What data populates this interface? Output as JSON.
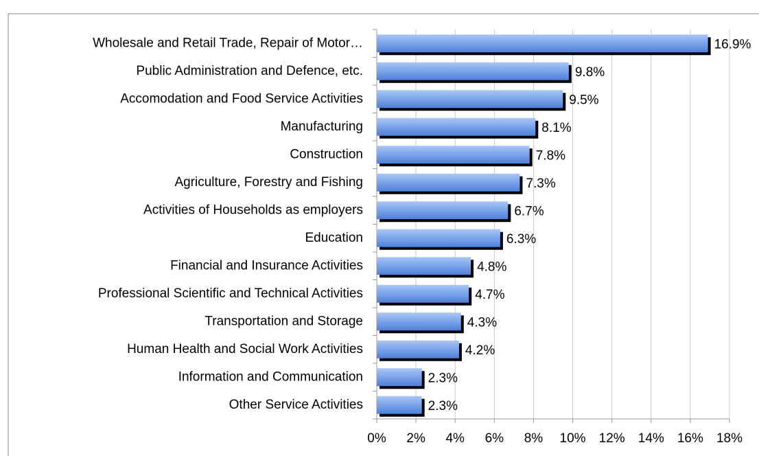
{
  "chart_data": {
    "type": "bar",
    "orientation": "horizontal",
    "categories": [
      "Wholesale and Retail Trade, Repair of Motor…",
      "Public Administration and Defence, etc.",
      "Accomodation and Food Service Activities",
      "Manufacturing",
      "Construction",
      "Agriculture, Forestry and Fishing",
      "Activities of Households as employers",
      "Education",
      "Financial and Insurance Activities",
      "Professional  Scientific and Technical Activities",
      "Transportation and Storage",
      "Human Health and Social Work Activities",
      "Information and Communication",
      "Other Service Activities"
    ],
    "values": [
      16.9,
      9.8,
      9.5,
      8.1,
      7.8,
      7.3,
      6.7,
      6.3,
      4.8,
      4.7,
      4.3,
      4.2,
      2.3,
      2.3
    ],
    "value_labels": [
      "16.9%",
      "9.8%",
      "9.5%",
      "8.1%",
      "7.8%",
      "7.3%",
      "6.7%",
      "6.3%",
      "4.8%",
      "4.7%",
      "4.3%",
      "4.2%",
      "2.3%",
      "2.3%"
    ],
    "color": "#6f9ae6",
    "xlim": [
      0,
      18
    ],
    "xticks": [
      {
        "value": 0,
        "label": "0%"
      },
      {
        "value": 2,
        "label": "2%"
      },
      {
        "value": 4,
        "label": "4%"
      },
      {
        "value": 6,
        "label": "6%"
      },
      {
        "value": 8,
        "label": "8%"
      },
      {
        "value": 10,
        "label": "10%"
      },
      {
        "value": 12,
        "label": "12%"
      },
      {
        "value": 14,
        "label": "14%"
      },
      {
        "value": 16,
        "label": "16%"
      },
      {
        "value": 18,
        "label": "18%"
      }
    ],
    "grid": true
  }
}
